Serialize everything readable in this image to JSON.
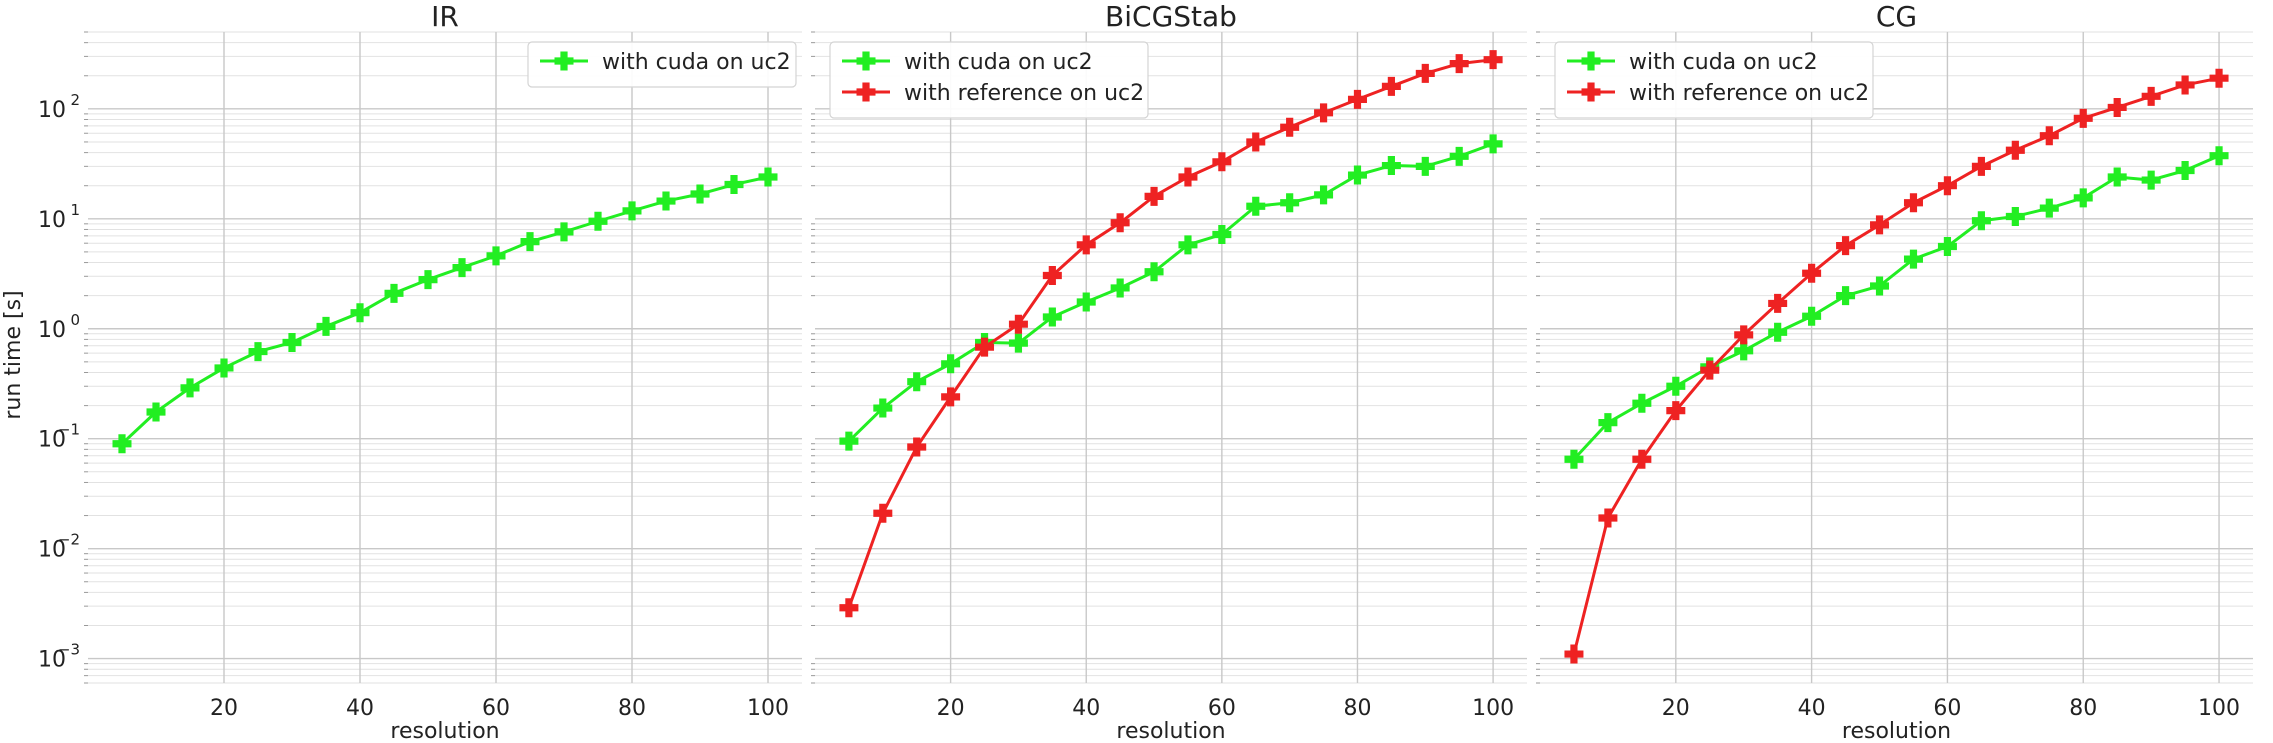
{
  "figure": {
    "ylabel": "run time [s]",
    "series_colors": {
      "with cuda on uc2": "#22ee22",
      "with reference on uc2": "#ee2222"
    },
    "y_axis_scale": "log",
    "ylim": [
      0.0006,
      500
    ],
    "xlim": [
      0,
      105
    ],
    "y_ticks": [
      {
        "value": 0.001,
        "base": "10",
        "exp": "−3"
      },
      {
        "value": 0.01,
        "base": "10",
        "exp": "−2"
      },
      {
        "value": 0.1,
        "base": "10",
        "exp": "−1"
      },
      {
        "value": 1,
        "base": "10",
        "exp": "0"
      },
      {
        "value": 10,
        "base": "10",
        "exp": "1"
      },
      {
        "value": 100,
        "base": "10",
        "exp": "2"
      }
    ],
    "x_ticks": [
      20,
      40,
      60,
      80,
      100
    ]
  },
  "chart_data": [
    {
      "type": "line",
      "title": "IR",
      "xlabel": "resolution",
      "ylabel": "run time [s]",
      "y_scale": "log",
      "grid": true,
      "legend_position": "top-right",
      "series": [
        {
          "name": "with cuda on uc2",
          "color": "#22ee22",
          "x": [
            5,
            10,
            15,
            20,
            25,
            30,
            35,
            40,
            45,
            50,
            55,
            60,
            65,
            70,
            75,
            80,
            85,
            90,
            95,
            100
          ],
          "y": [
            0.09,
            0.175,
            0.29,
            0.44,
            0.62,
            0.75,
            1.05,
            1.4,
            2.1,
            2.8,
            3.6,
            4.6,
            6.2,
            7.6,
            9.5,
            11.8,
            14.5,
            16.8,
            20.5,
            24
          ]
        }
      ]
    },
    {
      "type": "line",
      "title": "BiCGStab",
      "xlabel": "resolution",
      "y_scale": "log",
      "grid": true,
      "legend_position": "top-left",
      "series": [
        {
          "name": "with cuda on uc2",
          "color": "#22ee22",
          "x": [
            5,
            10,
            15,
            20,
            25,
            30,
            35,
            40,
            45,
            50,
            55,
            60,
            65,
            70,
            75,
            80,
            85,
            90,
            95,
            100
          ],
          "y": [
            0.095,
            0.19,
            0.33,
            0.48,
            0.75,
            0.74,
            1.28,
            1.75,
            2.35,
            3.3,
            5.8,
            7.2,
            13,
            14,
            16.5,
            25,
            30.5,
            30,
            37,
            48
          ]
        },
        {
          "name": "with reference on uc2",
          "color": "#ee2222",
          "x": [
            5,
            10,
            15,
            20,
            25,
            30,
            35,
            40,
            45,
            50,
            55,
            60,
            65,
            70,
            75,
            80,
            85,
            90,
            95,
            100
          ],
          "y": [
            0.0029,
            0.021,
            0.084,
            0.24,
            0.68,
            1.1,
            3.05,
            5.8,
            9.2,
            16,
            24,
            33,
            50,
            68,
            92,
            122,
            160,
            210,
            258,
            280
          ]
        }
      ]
    },
    {
      "type": "line",
      "title": "CG",
      "xlabel": "resolution",
      "y_scale": "log",
      "grid": true,
      "legend_position": "top-left",
      "series": [
        {
          "name": "with cuda on uc2",
          "color": "#22ee22",
          "x": [
            5,
            10,
            15,
            20,
            25,
            30,
            35,
            40,
            45,
            50,
            55,
            60,
            65,
            70,
            75,
            80,
            85,
            90,
            95,
            100
          ],
          "y": [
            0.065,
            0.14,
            0.21,
            0.3,
            0.45,
            0.63,
            0.93,
            1.3,
            2.0,
            2.45,
            4.3,
            5.6,
            9.6,
            10.5,
            12.5,
            15.5,
            24,
            22.5,
            27.5,
            37.5
          ]
        },
        {
          "name": "with reference on uc2",
          "color": "#ee2222",
          "x": [
            5,
            10,
            15,
            20,
            25,
            30,
            35,
            40,
            45,
            50,
            55,
            60,
            65,
            70,
            75,
            80,
            85,
            90,
            95,
            100
          ],
          "y": [
            0.0011,
            0.019,
            0.065,
            0.18,
            0.42,
            0.88,
            1.7,
            3.2,
            5.7,
            8.8,
            14,
            20,
            30,
            42,
            57,
            82,
            103,
            130,
            165,
            190
          ]
        }
      ]
    }
  ]
}
